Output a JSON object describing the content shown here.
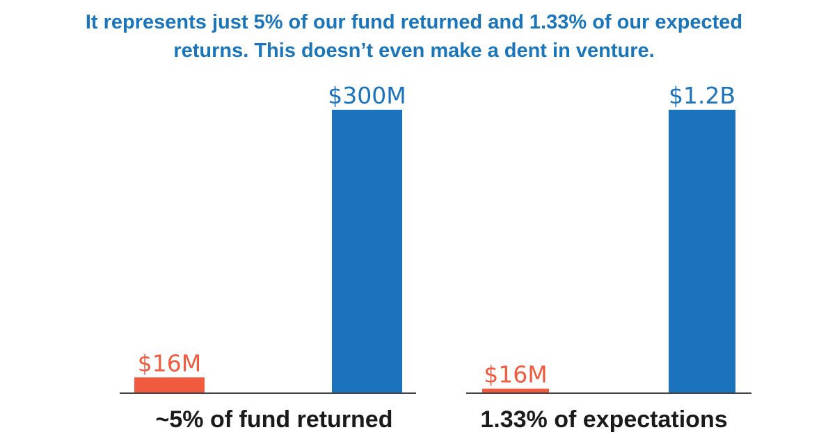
{
  "title": {
    "line1": "It represents just 5% of our fund returned and 1.33% of our expected",
    "line2": "returns. This doesn’t even make a dent in venture."
  },
  "colors": {
    "title": "#1b75bb",
    "accent_bar": "#f05a3f",
    "main_bar": "#1c73bd",
    "baseline": "#444444",
    "caption": "#1a1a1a"
  },
  "chart_data": [
    {
      "type": "bar",
      "caption": "~5% of fund returned",
      "categories": [
        "",
        ""
      ],
      "values": [
        16,
        300
      ],
      "value_labels": [
        "$16M",
        "$300M"
      ],
      "units": "millions USD"
    },
    {
      "type": "bar",
      "caption": "1.33% of expectations",
      "categories": [
        "",
        ""
      ],
      "values": [
        16,
        1200
      ],
      "value_labels": [
        "$16M",
        "$1.2B"
      ],
      "units": "millions USD"
    }
  ]
}
